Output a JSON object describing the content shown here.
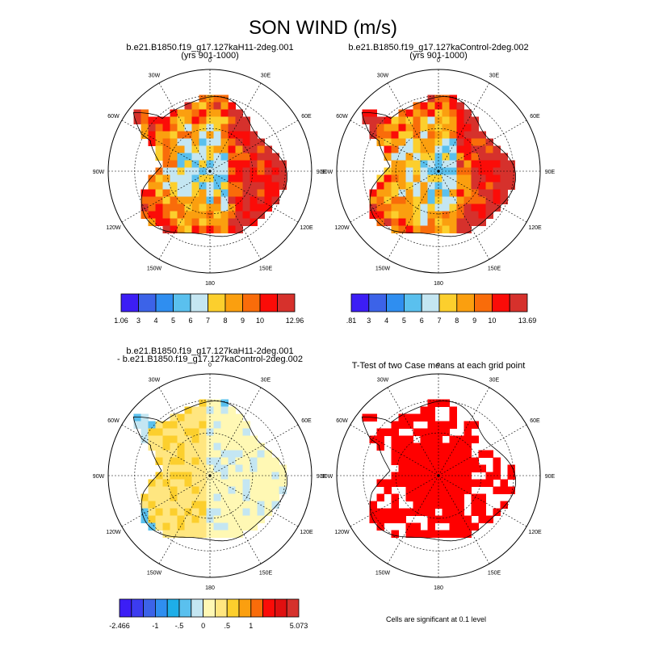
{
  "title": "SON WIND (m/s)",
  "panels": [
    {
      "title_lines": [
        "b.e21.B1850.f19_g17.127kaH11-2deg.001",
        "(yrs 901-1000)"
      ]
    },
    {
      "title_lines": [
        "b.e21.B1850.f19_g17.127kaControl-2deg.002",
        "(yrs 901-1000)"
      ]
    },
    {
      "title_lines": [
        "b.e21.B1850.f19_g17.127kaH11-2deg.001",
        "- b.e21.B1850.f19_g17.127kaControl-2deg.002"
      ]
    },
    {
      "title_lines": [
        "T-Test of two Case means at each grid point"
      ]
    }
  ],
  "lon_labels": [
    "0",
    "30E",
    "60E",
    "90E",
    "120E",
    "150E",
    "180",
    "150W",
    "120W",
    "90W",
    "60W",
    "30W"
  ],
  "colorbars": [
    {
      "labels": [
        "1.06",
        "3",
        "4",
        "5",
        "6",
        "7",
        "8",
        "9",
        "10",
        "12.96"
      ],
      "colors": [
        "#3c1ef5",
        "#3c63e8",
        "#2f8ef0",
        "#5ac0ee",
        "#c4e6f2",
        "#fccf2d",
        "#fb9f0f",
        "#f96c0a",
        "#fb0c08",
        "#d6312c"
      ]
    },
    {
      "labels": [
        ".81",
        "3",
        "4",
        "5",
        "6",
        "7",
        "8",
        "9",
        "10",
        "13.69"
      ],
      "colors": [
        "#3c1ef5",
        "#3c63e8",
        "#2f8ef0",
        "#5ac0ee",
        "#c4e6f2",
        "#fccf2d",
        "#fb9f0f",
        "#f96c0a",
        "#fb0c08",
        "#d6312c"
      ]
    },
    {
      "labels": [
        "-2.466",
        "-1",
        "-.5",
        "0",
        ".5",
        "1",
        "5.073"
      ],
      "colors": [
        "#3c1ef5",
        "#3c3cf0",
        "#3c63e8",
        "#2f8ef0",
        "#1eaee8",
        "#5ac0ee",
        "#c4e6f2",
        "#fff8b4",
        "#ffe680",
        "#fccf2d",
        "#fb9f0f",
        "#f96c0a",
        "#fb0c08",
        "#e01010",
        "#d6312c"
      ]
    }
  ],
  "footnote": "Cells are significant at 0.1 level",
  "chart_data": [
    {
      "type": "heatmap",
      "projection": "south polar stereographic",
      "title": "b.e21.B1850.f19_g17.127kaH11-2deg.001 (yrs 901-1000)",
      "units": "m/s",
      "range": [
        1.06,
        12.96
      ],
      "levels": [
        3,
        4,
        5,
        6,
        7,
        8,
        9,
        10
      ]
    },
    {
      "type": "heatmap",
      "projection": "south polar stereographic",
      "title": "b.e21.B1850.f19_g17.127kaControl-2deg.002 (yrs 901-1000)",
      "units": "m/s",
      "range": [
        0.81,
        13.69
      ],
      "levels": [
        3,
        4,
        5,
        6,
        7,
        8,
        9,
        10
      ]
    },
    {
      "type": "heatmap",
      "projection": "south polar stereographic",
      "title": "b.e21.B1850.f19_g17.127kaH11-2deg.001 - b.e21.B1850.f19_g17.127kaControl-2deg.002",
      "units": "m/s",
      "range": [
        -2.466,
        5.073
      ],
      "levels": [
        -1,
        -0.5,
        0,
        0.5,
        1
      ]
    },
    {
      "type": "heatmap",
      "projection": "south polar stereographic",
      "title": "T-Test of two Case means at each grid point",
      "significance_level": 0.1
    }
  ]
}
